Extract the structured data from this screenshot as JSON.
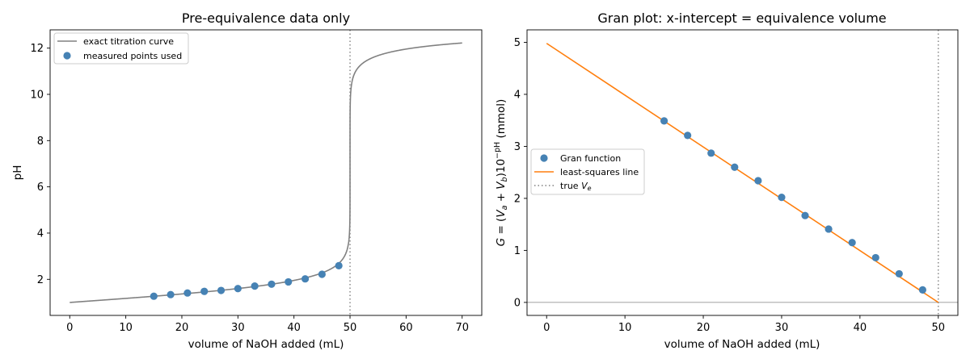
{
  "chart_data": [
    {
      "type": "line",
      "title": "Pre-equivalence data only",
      "xlabel": "volume of NaOH added (mL)",
      "ylabel": "pH",
      "xlim": [
        -3.5,
        73.5
      ],
      "ylim": [
        0.44,
        12.79
      ],
      "xticks": [
        0,
        10,
        20,
        30,
        40,
        50,
        60,
        70
      ],
      "yticks": [
        2,
        4,
        6,
        8,
        10,
        12
      ],
      "equivalence_volume": 50,
      "legend_position": "upper-left",
      "colors": {
        "curve": "#808080",
        "points": "#4682b4",
        "vline": "#808080"
      },
      "series": [
        {
          "name": "exact titration curve",
          "kind": "line",
          "model": {
            "acid_concentration_M": 0.1,
            "acid_volume_mL": 50,
            "base_concentration_M": 0.1,
            "v_max": 70
          }
        },
        {
          "name": "measured points used",
          "kind": "scatter",
          "x": [
            15,
            18,
            21,
            24,
            27,
            30,
            33,
            36,
            39,
            42,
            45,
            48
          ],
          "y": [
            1.27,
            1.34,
            1.41,
            1.48,
            1.52,
            1.6,
            1.71,
            1.79,
            1.89,
            2.02,
            2.22,
            2.59
          ]
        }
      ]
    },
    {
      "type": "scatter",
      "title": "Gran plot: x-intercept = equivalence volume",
      "xlabel": "volume of NaOH added (mL)",
      "ylabel": "G = (V_a + V_b)10^{-pH} (mmol)",
      "xlim": [
        -2.5,
        52.5
      ],
      "ylim": [
        -0.25,
        5.24
      ],
      "xticks": [
        0,
        10,
        20,
        30,
        40,
        50
      ],
      "yticks": [
        0,
        1,
        2,
        3,
        4,
        5
      ],
      "equivalence_volume": 50,
      "legend_position": "center-left",
      "colors": {
        "points": "#4682b4",
        "fit": "#ff7f0e",
        "vline": "#808080",
        "hline": "#808080"
      },
      "series": [
        {
          "name": "Gran function",
          "kind": "scatter",
          "x": [
            15,
            18,
            21,
            24,
            27,
            30,
            33,
            36,
            39,
            42,
            45,
            48
          ],
          "y": [
            3.49,
            3.21,
            2.87,
            2.6,
            2.34,
            2.02,
            1.67,
            1.41,
            1.15,
            0.86,
            0.55,
            0.24
          ]
        },
        {
          "name": "least-squares line",
          "kind": "line",
          "x": [
            0,
            50
          ],
          "y": [
            4.98,
            0
          ]
        },
        {
          "name": "true V_e",
          "kind": "vline",
          "x": 50
        }
      ]
    }
  ]
}
